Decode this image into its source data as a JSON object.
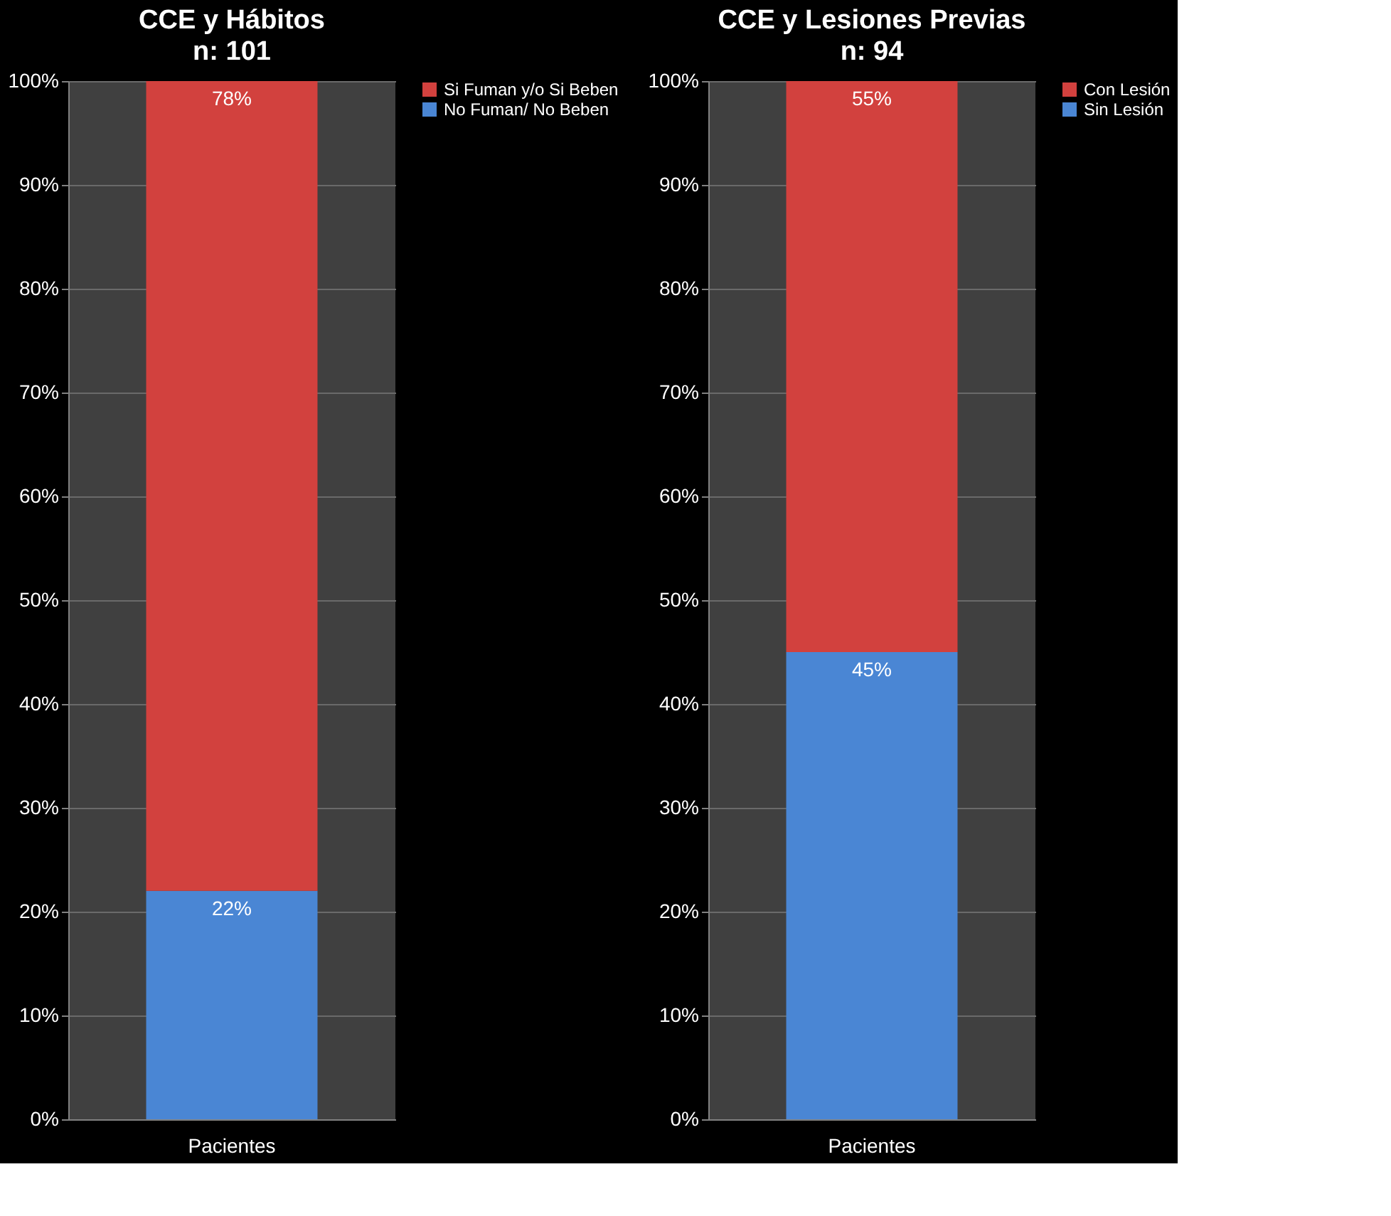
{
  "chart_data": [
    {
      "type": "bar",
      "title": "CCE y Hábitos",
      "subtitle": "n: 101",
      "categories": [
        "Pacientes"
      ],
      "stacked": true,
      "legend": "right",
      "grid": "y",
      "ylim": [
        0,
        100
      ],
      "yticks": [
        {
          "value": 0,
          "label": "0%"
        },
        {
          "value": 10,
          "label": "10%"
        },
        {
          "value": 20,
          "label": "20%"
        },
        {
          "value": 30,
          "label": "30%"
        },
        {
          "value": 40,
          "label": "40%"
        },
        {
          "value": 50,
          "label": "50%"
        },
        {
          "value": 60,
          "label": "60%"
        },
        {
          "value": 70,
          "label": "70%"
        },
        {
          "value": 80,
          "label": "80%"
        },
        {
          "value": 90,
          "label": "90%"
        },
        {
          "value": 100,
          "label": "100%"
        }
      ],
      "series": [
        {
          "name": "No Fuman/ No Beben",
          "color": "#4a86d4",
          "values": [
            22
          ],
          "value_labels": [
            "22%"
          ]
        },
        {
          "name": "Si Fuman y/o Si Beben",
          "color": "#d2413e",
          "values": [
            78
          ],
          "value_labels": [
            "78%"
          ]
        }
      ]
    },
    {
      "type": "bar",
      "title": "CCE y Lesiones Previas",
      "subtitle": "n: 94",
      "categories": [
        "Pacientes"
      ],
      "stacked": true,
      "legend": "right",
      "grid": "y",
      "ylim": [
        0,
        100
      ],
      "yticks": [
        {
          "value": 0,
          "label": "0%"
        },
        {
          "value": 10,
          "label": "10%"
        },
        {
          "value": 20,
          "label": "20%"
        },
        {
          "value": 30,
          "label": "30%"
        },
        {
          "value": 40,
          "label": "40%"
        },
        {
          "value": 50,
          "label": "50%"
        },
        {
          "value": 60,
          "label": "60%"
        },
        {
          "value": 70,
          "label": "70%"
        },
        {
          "value": 80,
          "label": "80%"
        },
        {
          "value": 90,
          "label": "90%"
        },
        {
          "value": 100,
          "label": "100%"
        }
      ],
      "series": [
        {
          "name": "Sin Lesión",
          "color": "#4a86d4",
          "values": [
            45
          ],
          "value_labels": [
            "45%"
          ]
        },
        {
          "name": "Con Lesión",
          "color": "#d2413e",
          "values": [
            55
          ],
          "value_labels": [
            "55%"
          ]
        }
      ]
    }
  ]
}
